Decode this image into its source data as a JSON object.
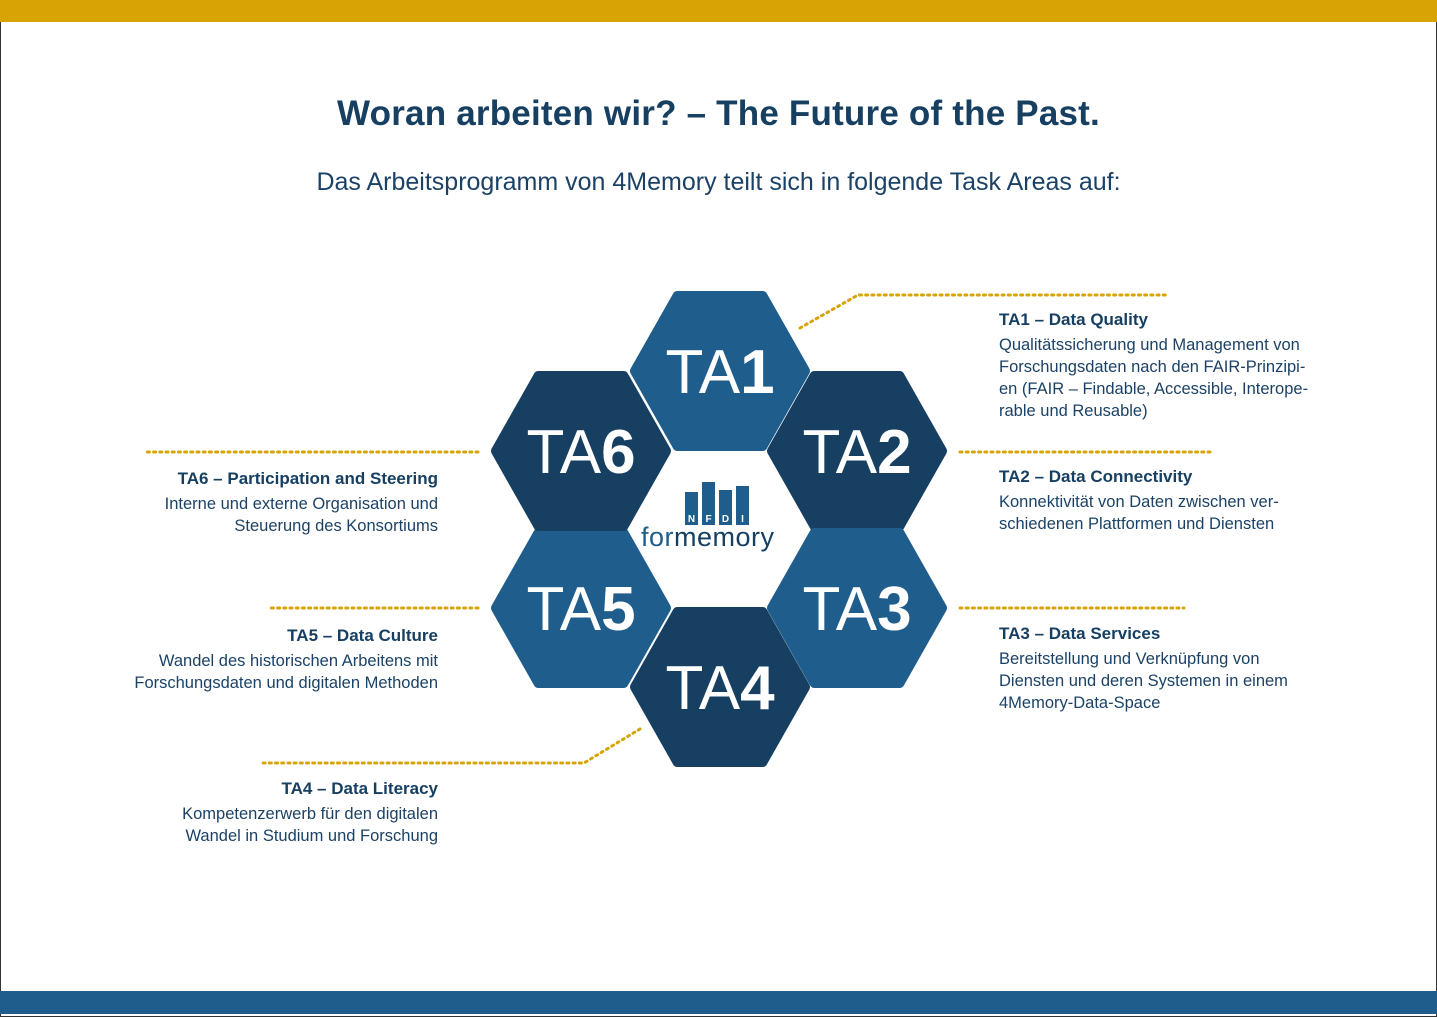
{
  "title": "Woran arbeiten wir? – The Future of the Past.",
  "subtitle": "Das Arbeitsprogramm von 4Memory teilt sich in folgende Task Areas auf:",
  "colors": {
    "top_bar": "#d7a305",
    "bottom_bar": "#1f5d8c",
    "hex_light": "#1f5d8c",
    "hex_dark": "#163f61",
    "dots": "#d7a305"
  },
  "logo": {
    "letters": [
      "N",
      "F",
      "D",
      "I"
    ],
    "prefix": "for",
    "suffix": "memory"
  },
  "hexagons": [
    {
      "prefix": "TA",
      "num": "1"
    },
    {
      "prefix": "TA",
      "num": "2"
    },
    {
      "prefix": "TA",
      "num": "3"
    },
    {
      "prefix": "TA",
      "num": "4"
    },
    {
      "prefix": "TA",
      "num": "5"
    },
    {
      "prefix": "TA",
      "num": "6"
    }
  ],
  "areas": {
    "ta1": {
      "title": "TA1 – Data Quality",
      "lines": [
        "Qualitätssicherung und Management von",
        "Forschungsdaten nach den FAIR-Prinzipi-",
        "en (FAIR – Findable, Accessible, Interope-",
        "rable und Reusable)"
      ]
    },
    "ta2": {
      "title": "TA2 – Data Connectivity",
      "lines": [
        "Konnektivität von Daten zwischen ver-",
        "schiedenen Plattformen und Diensten"
      ]
    },
    "ta3": {
      "title": "TA3 – Data Services",
      "lines": [
        "Bereitstellung und Verknüpfung von",
        "Diensten und deren Systemen in einem",
        "4Memory-Data-Space"
      ]
    },
    "ta4": {
      "title": "TA4 – Data Literacy",
      "lines": [
        "Kompetenzerwerb für den digitalen",
        "Wandel in Studium und Forschung"
      ]
    },
    "ta5": {
      "title": "TA5 – Data Culture",
      "lines": [
        "Wandel des historischen Arbeitens mit",
        "Forschungsdaten und digitalen Methoden"
      ]
    },
    "ta6": {
      "title": "TA6 – Participation and Steering",
      "lines": [
        "Interne und externe Organisation und",
        "Steuerung des Konsortiums"
      ]
    }
  }
}
